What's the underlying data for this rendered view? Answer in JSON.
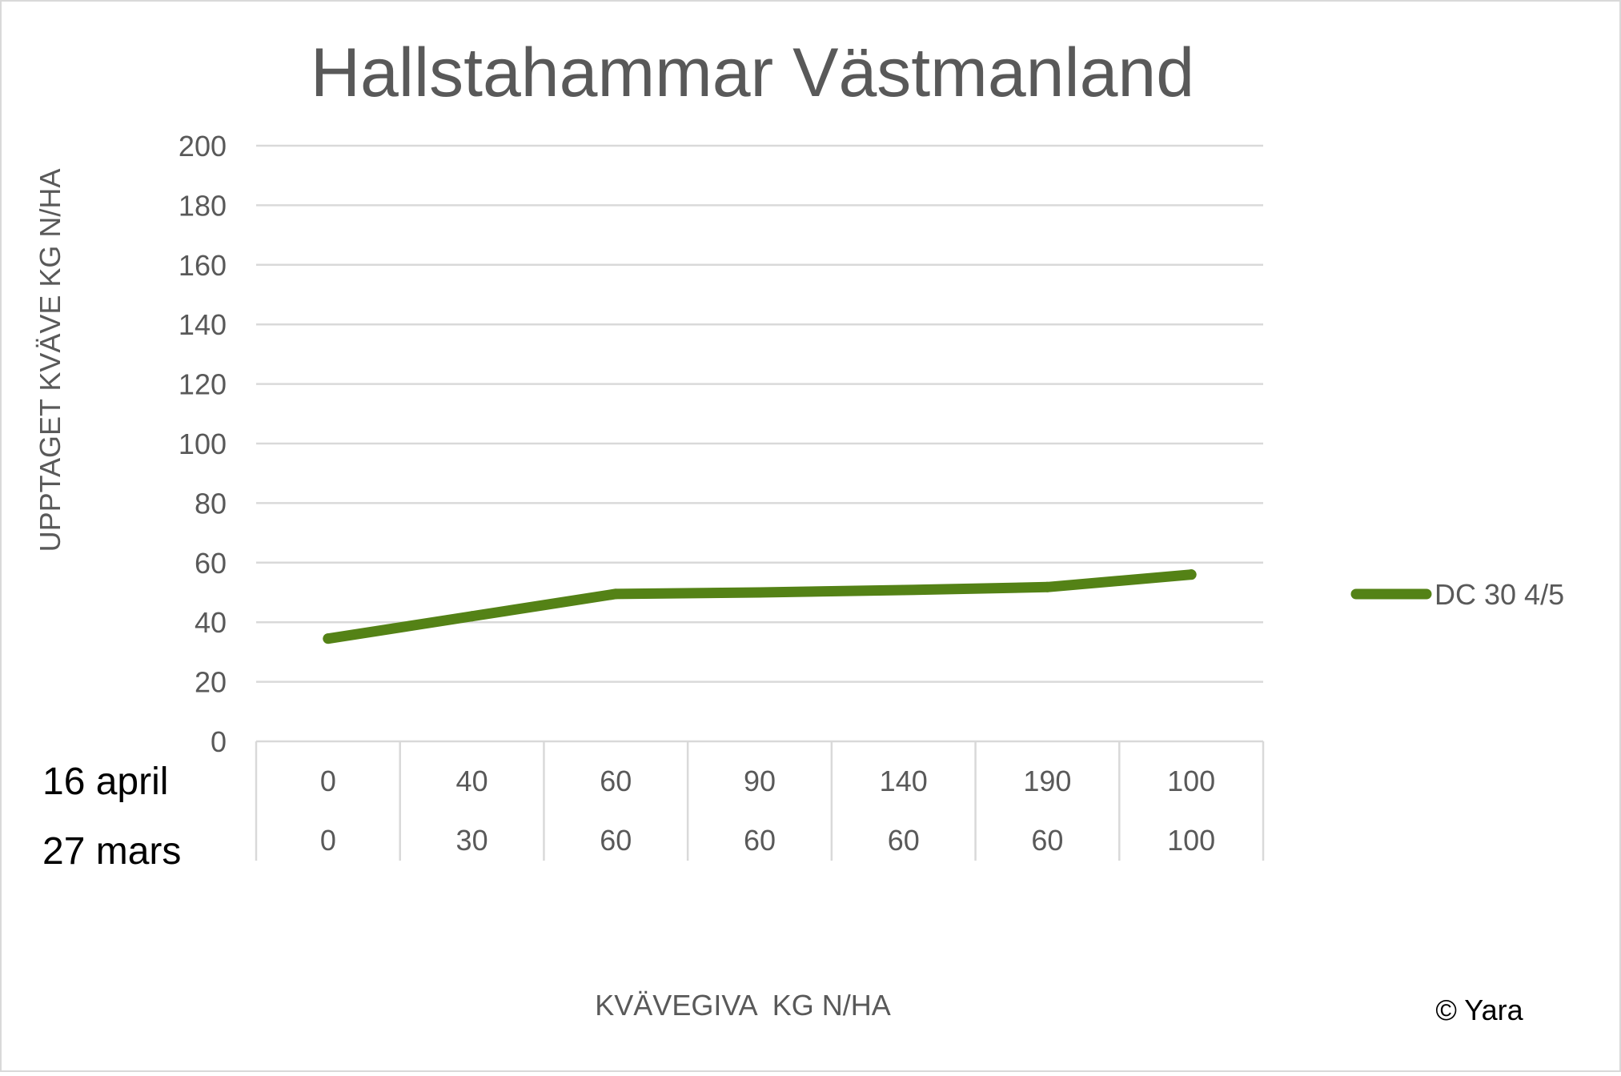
{
  "chart_data": {
    "type": "line",
    "title": "Hallstahammar Västmanland",
    "ylabel": "UPPTAGET KVÄVE KG N/HA",
    "xlabel": "KVÄVEGIVA  KG N/HA",
    "ylim": [
      0,
      200
    ],
    "yticks": [
      0,
      20,
      40,
      60,
      80,
      100,
      120,
      140,
      160,
      180,
      200
    ],
    "grid": true,
    "legend_position": "right",
    "category_levels": [
      {
        "label": "16 april",
        "values": [
          "0",
          "40",
          "60",
          "90",
          "140",
          "190",
          "100"
        ]
      },
      {
        "label": "27 mars",
        "values": [
          "0",
          "30",
          "60",
          "60",
          "60",
          "60",
          "100"
        ]
      }
    ],
    "series": [
      {
        "name": "DC 30 4/5",
        "color": "#548216",
        "values": [
          34.5,
          42,
          49.5,
          50,
          50.8,
          51.8,
          56
        ]
      }
    ],
    "copyright": "© Yara"
  }
}
